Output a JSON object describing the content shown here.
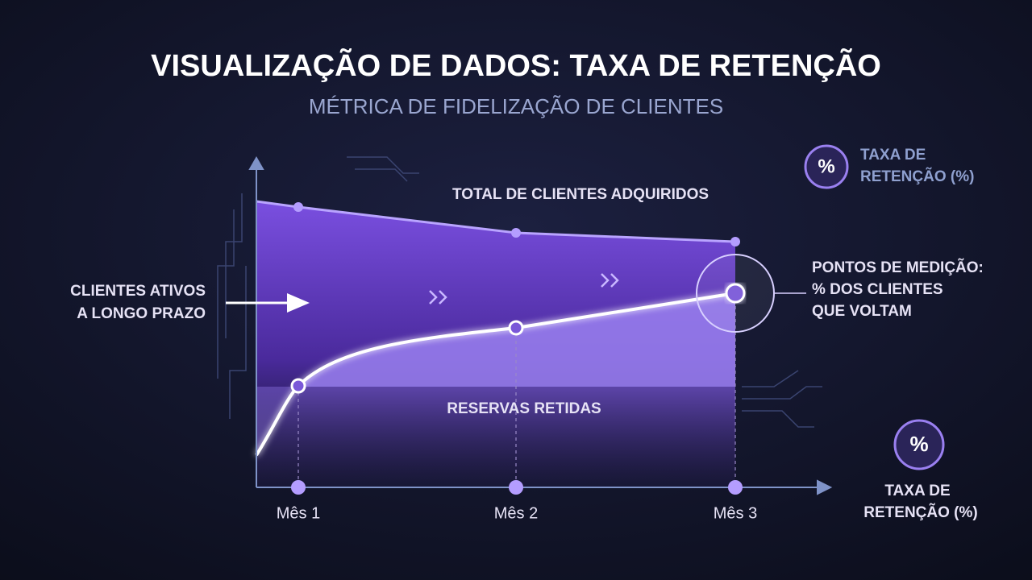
{
  "header": {
    "title": "VISUALIZAÇÃO DE DADOS: TAXA DE RETENÇÃO",
    "subtitle": "MÉTRICA DE FIDELIZAÇÃO DE CLIENTES"
  },
  "legend_top": {
    "icon": "%",
    "lines": [
      "TAXA DE",
      "RETENÇÃO (%)"
    ]
  },
  "legend_bottom": {
    "icon": "%",
    "lines": [
      "TAXA DE",
      "RETENÇÃO (%)"
    ]
  },
  "labels": {
    "total": "TOTAL DE CLIENTES ADQUIRIDOS",
    "active": [
      "CLIENTES ATIVOS",
      "A LONGO PRAZO"
    ],
    "points": [
      "PONTOS DE MEDIÇÃO:",
      "% DOS CLIENTES",
      "QUE VOLTAM"
    ],
    "retained": "RESERVAS RETIDAS"
  },
  "months": [
    "Mês 1",
    "Mês 2",
    "Mês 3"
  ]
}
